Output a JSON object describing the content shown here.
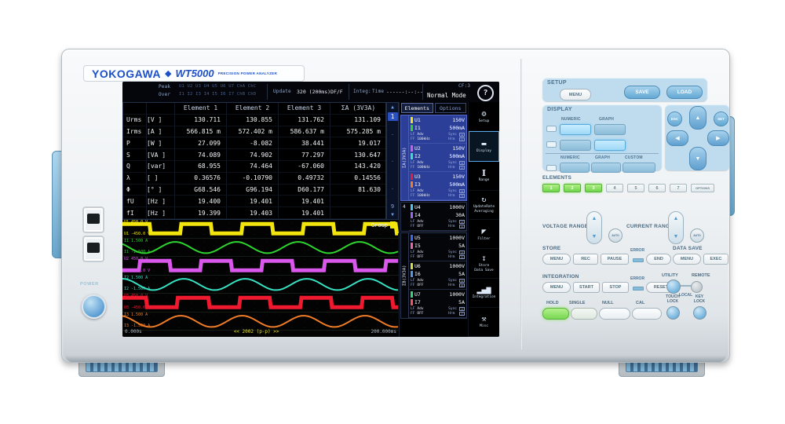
{
  "device": {
    "brand": "YOKOGAWA",
    "diamond": "◆",
    "model": "WT5000",
    "subtitle": "PRECISION POWER ANALYZER",
    "power_label": "POWER"
  },
  "screen": {
    "status": {
      "peak_label": "Peak",
      "peak_values": "U1 U2 U3 U4 U5 U6 U7 ChA ChC",
      "over_label": "Over",
      "over_values": "I1 I2 I3 I4 I5 I6 I7 ChB ChD",
      "update_label": "Update",
      "update_value": "320 (200ms)DF/F",
      "integ_label": "Integ:",
      "time_label": "Time",
      "time_value": "------:--:--",
      "mode": "Normal Mode",
      "cf": "CF:3",
      "help": "?"
    },
    "table": {
      "headers": [
        "Element 1",
        "Element 2",
        "Element 3",
        "ΣA (3V3A)"
      ],
      "rows": [
        {
          "name": "Urms",
          "unit": "[V  ]",
          "values": [
            "130.711",
            "130.855",
            "131.762",
            "131.109"
          ]
        },
        {
          "name": "Irms",
          "unit": "[A  ]",
          "values": [
            "566.815 m",
            "572.402 m",
            "586.637 m",
            "575.285 m"
          ]
        },
        {
          "name": "P",
          "unit": "[W  ]",
          "values": [
            "27.099",
            "-8.082",
            "38.441",
            "19.017"
          ]
        },
        {
          "name": "S",
          "unit": "[VA ]",
          "values": [
            "74.089",
            "74.902",
            "77.297",
            "130.647"
          ]
        },
        {
          "name": "Q",
          "unit": "[var]",
          "values": [
            "68.955",
            "74.464",
            "-67.060",
            "143.420"
          ]
        },
        {
          "name": "λ",
          "unit": "[   ]",
          "values": [
            "0.36576",
            "-0.10790",
            "0.49732",
            "0.14556"
          ]
        },
        {
          "name": "Φ",
          "unit": "[°  ]",
          "values": [
            "G68.546",
            "G96.194",
            "D60.177",
            "81.630"
          ]
        },
        {
          "name": "fU",
          "unit": "[Hz ]",
          "values": [
            "19.400",
            "19.401",
            "19.401",
            ""
          ]
        },
        {
          "name": "fI",
          "unit": "[Hz ]",
          "values": [
            "19.399",
            "19.403",
            "19.401",
            ""
          ]
        }
      ]
    },
    "pager": {
      "up": "▲",
      "current": "1",
      "dots": [
        "·",
        "·",
        "·"
      ],
      "last": "9",
      "down": "▼"
    },
    "waveform": {
      "group_label": "Group",
      "x_start": "0.000s",
      "x_center": "<< 2002 (p-p) >>",
      "x_end": "200.000ms",
      "tracks": [
        {
          "label": "U1",
          "top": "450.0 V",
          "bottom": "-450.0 V",
          "color": "#f2e50e",
          "type": "square",
          "phase": 0.05
        },
        {
          "label": "I1",
          "top": "1.500 A",
          "bottom": "-1.500 A",
          "color": "#2ed52e",
          "type": "sine",
          "phase": 0.39
        },
        {
          "label": "U2",
          "top": "450.0 V",
          "bottom": "-450.0 V",
          "color": "#d957ea",
          "type": "square",
          "phase": 0.72
        },
        {
          "label": "I2",
          "top": "1.500 A",
          "bottom": "-1.500 A",
          "color": "#38e0c2",
          "type": "sine",
          "phase": 0.25
        },
        {
          "label": "U3",
          "top": "450.0 V",
          "bottom": "-450.0 V",
          "color": "#f01a30",
          "type": "square",
          "phase": 0.1
        },
        {
          "label": "I3",
          "top": "1.500 A",
          "bottom": "-1.500 A",
          "color": "#f07c28",
          "type": "sine",
          "phase": 0.3
        }
      ]
    },
    "elements_panel": {
      "tabs": [
        "Elements",
        "Options"
      ],
      "group_a": "ΣA(3V3A)",
      "group_b": "ΣB(3V3A)",
      "lf": "LF",
      "ff": "FF",
      "adv": "Adv",
      "sync": "Sync",
      "hrm": "Hrm",
      "sync_u": "U",
      "items": [
        {
          "n": "1",
          "u": "U1",
          "u_range": "150V",
          "u_color": "#f2e50e",
          "i": "I1",
          "i_range": "500mA",
          "i_color": "#2ed52e",
          "filter": "100kHz",
          "group": "A"
        },
        {
          "n": "2",
          "u": "U2",
          "u_range": "150V",
          "u_color": "#d957ea",
          "i": "I2",
          "i_range": "500mA",
          "i_color": "#38e0c2",
          "filter": "100kHz",
          "group": "A"
        },
        {
          "n": "3",
          "u": "U3",
          "u_range": "150V",
          "u_color": "#f01a30",
          "i": "I3",
          "i_range": "500mA",
          "i_color": "#f07c28",
          "filter": "100kHz",
          "group": "A"
        },
        {
          "n": "4",
          "u": "U4",
          "u_range": "1000V",
          "u_color": "#4cc8f0",
          "i": "I4",
          "i_range": "30A",
          "i_color": "#9a66f0",
          "filter": "OFF",
          "group": ""
        },
        {
          "n": "5",
          "u": "U5",
          "u_range": "1000V",
          "u_color": "#3a6af2",
          "i": "I5",
          "i_range": "5A",
          "i_color": "#f066a8",
          "filter": "OFF",
          "group": "B"
        },
        {
          "n": "6",
          "u": "U6",
          "u_range": "1000V",
          "u_color": "#d8e23c",
          "i": "I6",
          "i_range": "5A",
          "i_color": "#4c9af0",
          "filter": "OFF",
          "group": "B"
        },
        {
          "n": "7",
          "u": "U7",
          "u_range": "1000V",
          "u_color": "#34d878",
          "i": "I7",
          "i_range": "5A",
          "i_color": "#f0566a",
          "filter": "OFF",
          "group": "B"
        }
      ]
    },
    "icon_bar": [
      {
        "name": "setup",
        "glyph": "⚙",
        "lines": [
          "Setup"
        ],
        "active": false
      },
      {
        "name": "display",
        "glyph": "▬",
        "lines": [
          "Display"
        ],
        "active": true
      },
      {
        "name": "range",
        "glyph": "I",
        "lines": [
          "Range"
        ],
        "active": false
      },
      {
        "name": "update-rate",
        "glyph": "↻",
        "lines": [
          "UpdateRate",
          "Averaging"
        ],
        "active": false
      },
      {
        "name": "filter",
        "glyph": "◤",
        "lines": [
          "Filter"
        ],
        "active": false
      },
      {
        "name": "store",
        "glyph": "↧",
        "lines": [
          "Store",
          "Data Save"
        ],
        "active": false
      },
      {
        "name": "integration",
        "glyph": "▂▄▆",
        "lines": [
          "Integration"
        ],
        "active": false
      },
      {
        "name": "misc",
        "glyph": "⚒",
        "lines": [
          "Misc"
        ],
        "active": false
      }
    ]
  },
  "panel": {
    "setup_label": "SETUP",
    "menu": "MENU",
    "save": "SAVE",
    "load": "LOAD",
    "display_label": "DISPLAY",
    "numeric": "NUMERIC",
    "graph": "GRAPH",
    "custom": "CUSTOM",
    "esc": "ESC",
    "set": "SET",
    "up": "▲",
    "down": "▼",
    "left": "◀",
    "right": "▶",
    "elements_label": "ELEMENTS",
    "element_keys": [
      "1",
      "2",
      "3",
      "4",
      "5",
      "6",
      "7",
      "OPTIONS"
    ],
    "voltage_range_label": "VOLTAGE RANGE",
    "current_range_label": "CURRENT RANGE",
    "auto": "AUTO",
    "store_label": "STORE",
    "rec": "REC",
    "pause": "PAUSE",
    "error": "ERROR",
    "end": "END",
    "data_save_label": "DATA SAVE",
    "exec": "EXEC",
    "integration_label": "INTEGRATION",
    "start": "START",
    "stop": "STOP",
    "reset": "RESET",
    "utility": "UTILITY",
    "remote": "REMOTE",
    "local": "LOCAL",
    "hold": "HOLD",
    "single": "SINGLE",
    "null": "NULL",
    "cal": "CAL",
    "touch_lock": [
      "TOUCH",
      "LOCK"
    ],
    "key_lock": [
      "KEY",
      "LOCK"
    ]
  }
}
